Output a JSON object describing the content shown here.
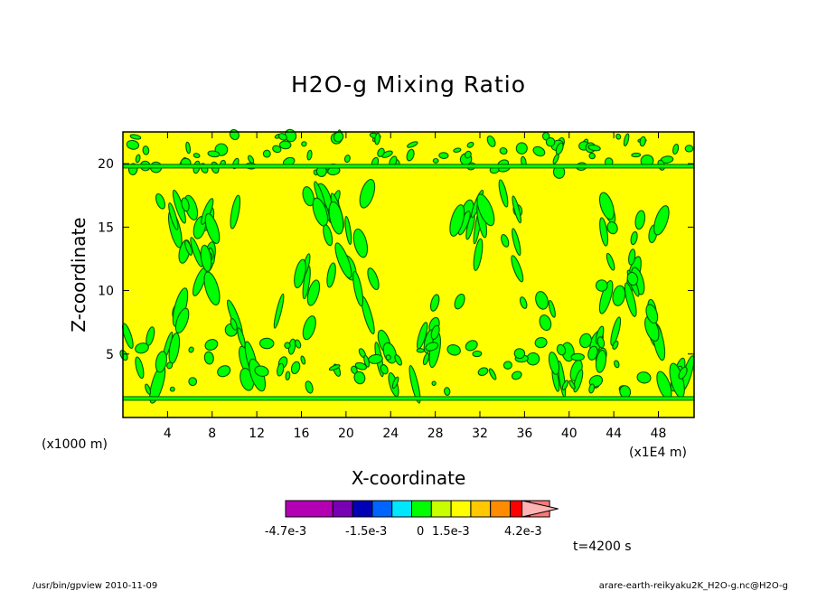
{
  "chart_data": {
    "type": "heatmap",
    "title": "H2O-g Mixing Ratio",
    "xlabel": "X-coordinate",
    "ylabel": "Z-coordinate",
    "x_unit": "(x1E4 m)",
    "y_unit": "(x1000 m)",
    "xlim": [
      0,
      51.2
    ],
    "ylim": [
      0,
      22.5
    ],
    "x_ticks": [
      4,
      8,
      12,
      16,
      20,
      24,
      28,
      32,
      36,
      40,
      44,
      48
    ],
    "y_ticks": [
      5,
      10,
      15,
      20
    ],
    "grid": false,
    "colorbar": {
      "colors": [
        "#b400b4",
        "#7800b4",
        "#0000b4",
        "#0064ff",
        "#00e6ff",
        "#00ff00",
        "#c8ff00",
        "#ffff00",
        "#ffc800",
        "#ff8c00",
        "#ff0000",
        "#ff7878",
        "#ffb4b4"
      ],
      "labels": [
        "-4.7e-3",
        "-1.5e-3",
        "0",
        "1.5e-3",
        "4.2e-3"
      ],
      "field_colors": {
        "background": "#ffff00",
        "anomaly": "#00ff00",
        "contour": "#005a00"
      }
    },
    "bands_z": [
      1.5,
      19.8
    ]
  },
  "time_label": "t=4200 s",
  "footer": {
    "left": "/usr/bin/gpview   2010-11-09",
    "right": "arare-earth-reikyaku2K_H2O-g.nc@H2O-g"
  }
}
